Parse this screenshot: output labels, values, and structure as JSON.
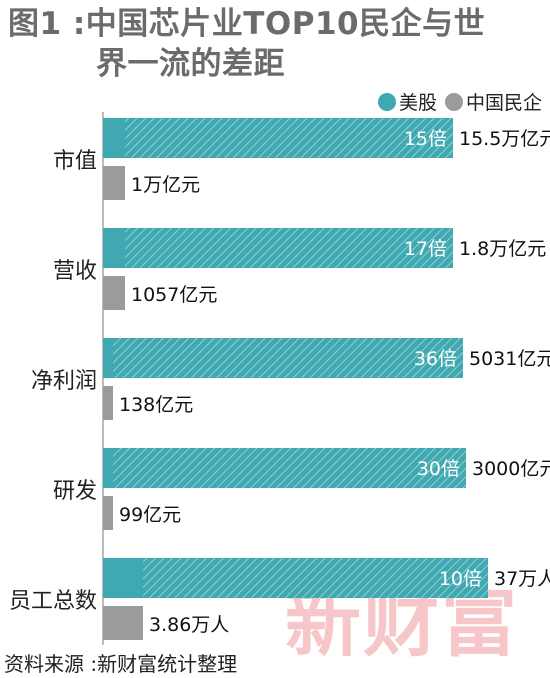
{
  "title_line1": "图1 :中国芯片业TOP10民企与世",
  "title_line2": "界一流的差距",
  "legend": {
    "us": {
      "label": "美股",
      "color": "#3fa8b0"
    },
    "cn": {
      "label": "中国民企",
      "color": "#9b9b9b"
    }
  },
  "source": "资料来源 :新财富统计整理",
  "watermark": "新财富",
  "chart_data": {
    "type": "bar",
    "orientation": "horizontal",
    "categories": [
      "市值",
      "营收",
      "净利润",
      "研发",
      "员工总数"
    ],
    "series": [
      {
        "name": "美股",
        "value_labels": [
          "15.5万亿元",
          "1.8万亿元",
          "5031亿元",
          "3000亿元",
          "37万人"
        ],
        "ratio_labels": [
          "15倍",
          "17倍",
          "36倍",
          "30倍",
          "10倍"
        ],
        "values": [
          15.5,
          1.8,
          5031,
          3000,
          37
        ]
      },
      {
        "name": "中国民企",
        "value_labels": [
          "1万亿元",
          "1057亿元",
          "138亿元",
          "99亿元",
          "3.86万人"
        ],
        "values": [
          1,
          0.1057,
          138,
          99,
          3.86
        ]
      }
    ],
    "ratio_to_us": [
      0.065,
      0.059,
      0.028,
      0.033,
      0.104
    ]
  }
}
